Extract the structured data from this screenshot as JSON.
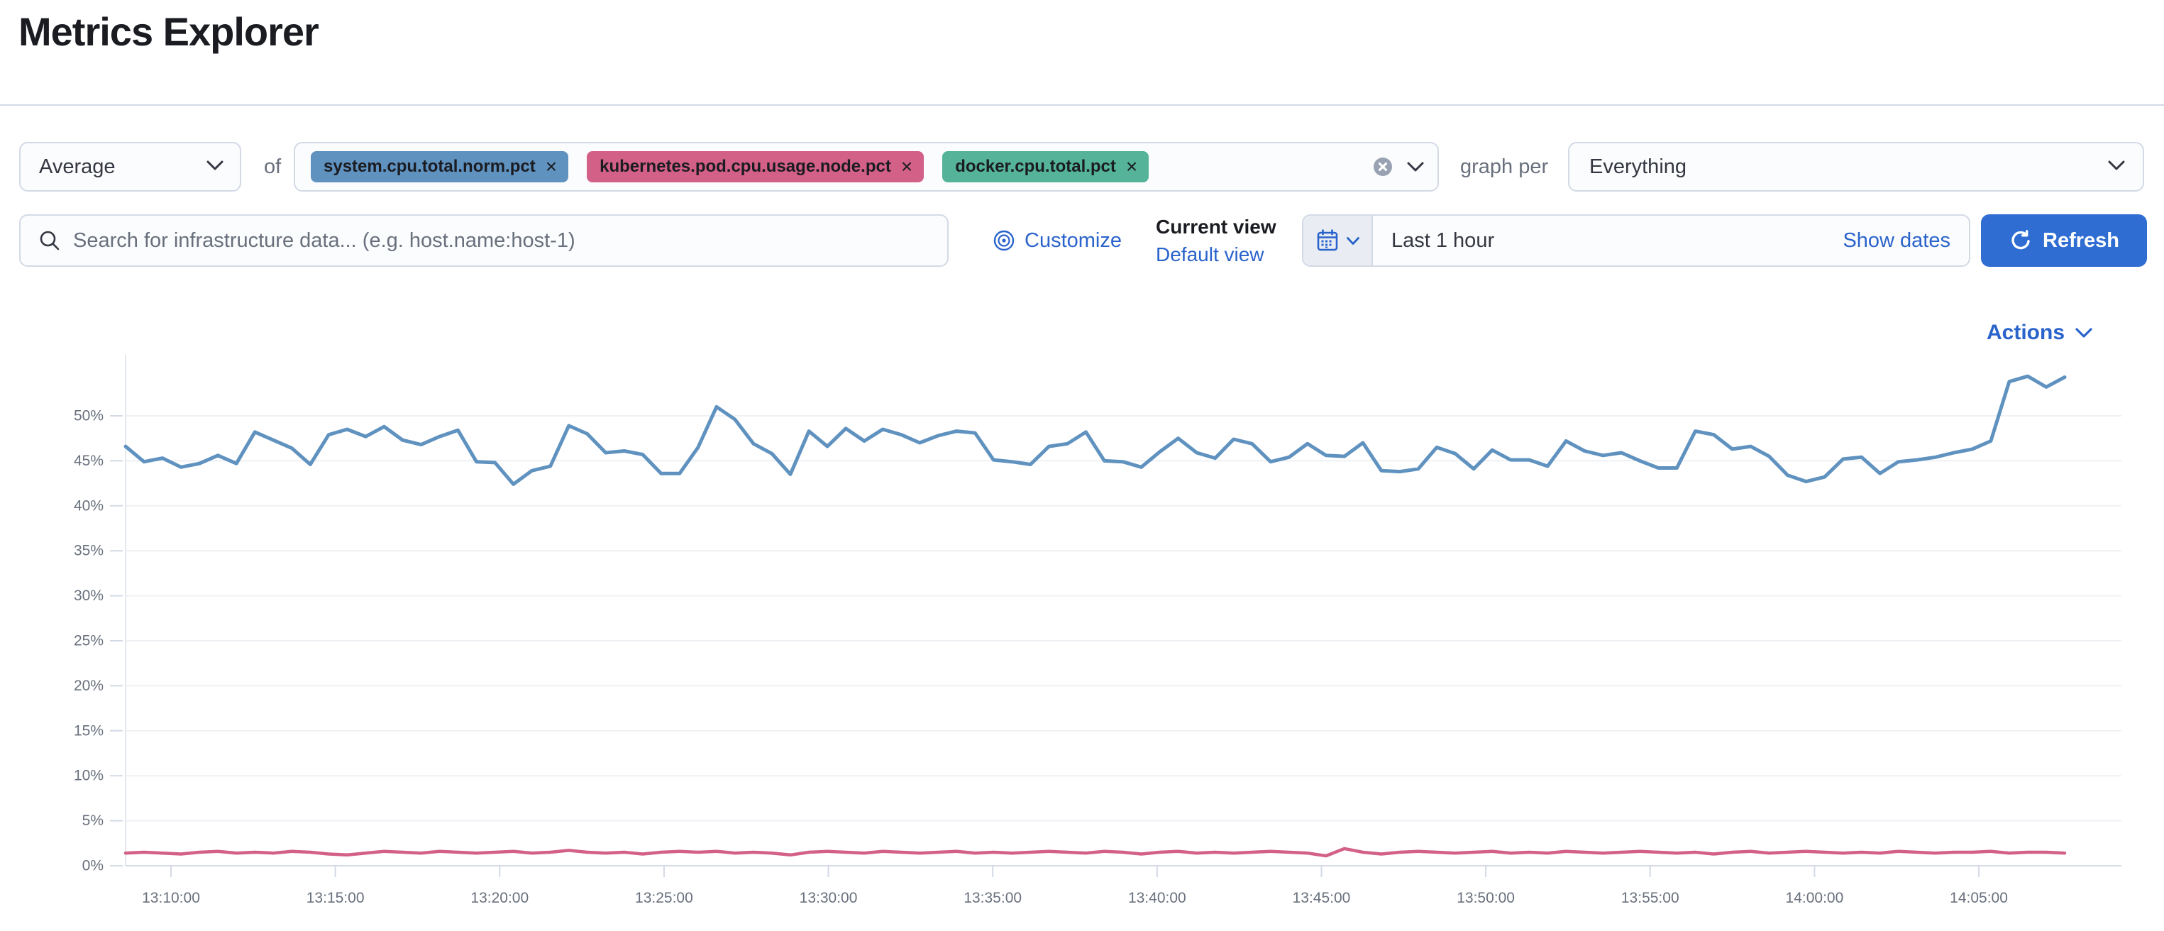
{
  "page": {
    "title": "Metrics Explorer"
  },
  "toolbar": {
    "aggregation": {
      "value": "Average"
    },
    "of_label": "of",
    "metrics": [
      {
        "label": "system.cpu.total.norm.pct",
        "color": "#6092C0"
      },
      {
        "label": "kubernetes.pod.cpu.usage.node.pct",
        "color": "#D36086"
      },
      {
        "label": "docker.cpu.total.pct",
        "color": "#54B399"
      }
    ],
    "clear_icon": "circle-cross",
    "graph_per_label": "graph per",
    "group_by": {
      "value": "Everything"
    }
  },
  "search": {
    "placeholder": "Search for infrastructure data... (e.g. host.name:host-1)",
    "value": "",
    "icon": "search-icon"
  },
  "view_controls": {
    "customize_label": "Customize",
    "customize_icon": "eye-icon",
    "current_view_label": "Current view",
    "view_name": "Default view"
  },
  "datepicker": {
    "quick_select_icon": "calendar-icon",
    "value": "Last 1 hour",
    "show_dates_label": "Show dates",
    "refresh_label": "Refresh",
    "refresh_icon": "refresh-icon"
  },
  "actions": {
    "label": "Actions",
    "icon": "chevron-down-icon"
  },
  "colors": {
    "accent_button": "#2F6DD2",
    "link": "#2A63CB",
    "border": "#D3DAE6",
    "muted_text": "#69707D",
    "series_blue": "#6092C0",
    "series_red": "#D36086"
  },
  "chart_data": {
    "type": "line",
    "title": "",
    "xlabel": "",
    "ylabel": "",
    "grid": "horizontal",
    "legend": "none",
    "ylim": [
      0,
      57
    ],
    "y_tick_values": [
      0,
      5,
      10,
      15,
      20,
      25,
      30,
      35,
      40,
      45,
      50
    ],
    "y_ticks": [
      "0%",
      "5%",
      "10%",
      "15%",
      "20%",
      "25%",
      "30%",
      "35%",
      "40%",
      "45%",
      "50%"
    ],
    "x_ticks": [
      "13:10:00",
      "13:15:00",
      "13:20:00",
      "13:25:00",
      "13:30:00",
      "13:35:00",
      "13:40:00",
      "13:45:00",
      "13:50:00",
      "13:55:00",
      "14:00:00",
      "14:05:00"
    ],
    "series": [
      {
        "name": "system.cpu.total.norm.pct",
        "color": "#6092C0",
        "unit": "%",
        "values": [
          46.6,
          44.9,
          45.3,
          44.3,
          44.7,
          45.6,
          44.7,
          48.2,
          47.3,
          46.4,
          44.6,
          47.9,
          48.5,
          47.7,
          48.8,
          47.3,
          46.8,
          47.7,
          48.4,
          44.9,
          44.8,
          42.4,
          43.9,
          44.4,
          48.9,
          48.0,
          45.9,
          46.1,
          45.7,
          43.6,
          43.6,
          46.5,
          51.0,
          49.6,
          46.9,
          45.8,
          43.5,
          48.3,
          46.6,
          48.6,
          47.2,
          48.5,
          47.9,
          47.0,
          47.8,
          48.3,
          48.1,
          45.1,
          44.9,
          44.6,
          46.6,
          46.9,
          48.2,
          45.0,
          44.9,
          44.3,
          46.0,
          47.5,
          45.9,
          45.3,
          47.4,
          46.9,
          44.9,
          45.4,
          46.9,
          45.6,
          45.5,
          47.0,
          43.9,
          43.8,
          44.1,
          46.5,
          45.8,
          44.1,
          46.2,
          45.1,
          45.1,
          44.4,
          47.2,
          46.1,
          45.6,
          45.9,
          45.0,
          44.2,
          44.2,
          48.3,
          47.9,
          46.3,
          46.6,
          45.5,
          43.4,
          42.7,
          43.2,
          45.2,
          45.4,
          43.6,
          44.9,
          45.1,
          45.4,
          45.9,
          46.3,
          47.2,
          53.8,
          54.4,
          53.2,
          54.3
        ]
      },
      {
        "name": "kubernetes.pod.cpu.usage.node.pct",
        "color": "#D36086",
        "unit": "%",
        "values": [
          1.4,
          1.5,
          1.4,
          1.3,
          1.5,
          1.6,
          1.4,
          1.5,
          1.4,
          1.6,
          1.5,
          1.3,
          1.2,
          1.4,
          1.6,
          1.5,
          1.4,
          1.6,
          1.5,
          1.4,
          1.5,
          1.6,
          1.4,
          1.5,
          1.7,
          1.5,
          1.4,
          1.5,
          1.3,
          1.5,
          1.6,
          1.5,
          1.6,
          1.4,
          1.5,
          1.4,
          1.2,
          1.5,
          1.6,
          1.5,
          1.4,
          1.6,
          1.5,
          1.4,
          1.5,
          1.6,
          1.4,
          1.5,
          1.4,
          1.5,
          1.6,
          1.5,
          1.4,
          1.6,
          1.5,
          1.3,
          1.5,
          1.6,
          1.4,
          1.5,
          1.4,
          1.5,
          1.6,
          1.5,
          1.4,
          1.1,
          1.9,
          1.5,
          1.3,
          1.5,
          1.6,
          1.5,
          1.4,
          1.5,
          1.6,
          1.4,
          1.5,
          1.4,
          1.6,
          1.5,
          1.4,
          1.5,
          1.6,
          1.5,
          1.4,
          1.5,
          1.3,
          1.5,
          1.6,
          1.4,
          1.5,
          1.6,
          1.5,
          1.4,
          1.5,
          1.4,
          1.6,
          1.5,
          1.4,
          1.5,
          1.5,
          1.6,
          1.4,
          1.5,
          1.5,
          1.4
        ]
      }
    ]
  }
}
